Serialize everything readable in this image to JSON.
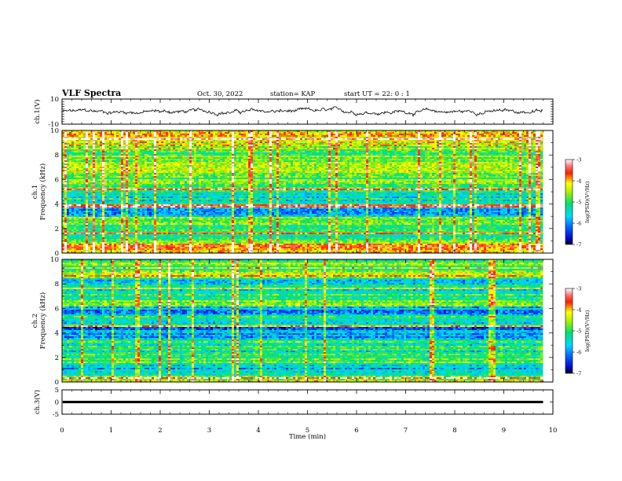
{
  "header": {
    "title": "VLF Spectra",
    "date": "Oct. 30, 2022",
    "station": "station= KAP",
    "start_time": "start  UT  =   22: 0  : 1"
  },
  "chart_data": [
    {
      "type": "line",
      "panel": "ch1-waveform",
      "ylabel": "ch.1(V)",
      "ylim": [
        -10,
        10
      ],
      "yticks": [
        "10",
        "-10"
      ],
      "xlim": [
        0,
        10
      ],
      "summary": "noisy waveform centred near 0 V, amplitude roughly ±2 V, ending at about 9.8 min"
    },
    {
      "type": "heatmap",
      "panel": "ch1-spectrogram",
      "ylabel": "Frequency (kHz)",
      "channel_label": "ch.1",
      "ylim": [
        0,
        10
      ],
      "yticks": [
        "0",
        "2",
        "4",
        "6",
        "8",
        "10"
      ],
      "xlim": [
        0,
        10
      ],
      "x_data_end": 9.8,
      "bands": [
        {
          "kHz": [
            0,
            0.8
          ],
          "level": -3.8
        },
        {
          "kHz": [
            0.8,
            2.0
          ],
          "level": -5.0
        },
        {
          "kHz": [
            2.0,
            3.0
          ],
          "level": -4.8
        },
        {
          "kHz": [
            3.0,
            3.7
          ],
          "level": -5.8
        },
        {
          "kHz": [
            3.7,
            4.0
          ],
          "level": -3.5
        },
        {
          "kHz": [
            4.0,
            5.0
          ],
          "level": -5.3
        },
        {
          "kHz": [
            5.0,
            6.2
          ],
          "level": -4.9
        },
        {
          "kHz": [
            6.2,
            7.0
          ],
          "level": -4.4
        },
        {
          "kHz": [
            7.0,
            8.4
          ],
          "level": -4.8
        },
        {
          "kHz": [
            8.4,
            10.0
          ],
          "level": -4.3
        }
      ],
      "colorbar": {
        "label": "log(PSD)(V²/Hz)",
        "range": [
          -7,
          -3
        ],
        "ticks": [
          "-3",
          "-4",
          "-5",
          "-6",
          "-7"
        ]
      }
    },
    {
      "type": "heatmap",
      "panel": "ch2-spectrogram",
      "ylabel": "Frequency (kHz)",
      "channel_label": "ch.2",
      "ylim": [
        0,
        10
      ],
      "yticks": [
        "0",
        "2",
        "4",
        "6",
        "8",
        "10"
      ],
      "xlim": [
        0,
        10
      ],
      "x_data_end": 9.8,
      "bands": [
        {
          "kHz": [
            0,
            0.5
          ],
          "level": -4.5
        },
        {
          "kHz": [
            0.5,
            1.5
          ],
          "level": -5.5
        },
        {
          "kHz": [
            1.5,
            2.5
          ],
          "level": -5.0
        },
        {
          "kHz": [
            2.5,
            3.4
          ],
          "level": -5.2
        },
        {
          "kHz": [
            3.4,
            4.5
          ],
          "level": -6.0
        },
        {
          "kHz": [
            4.5,
            5.5
          ],
          "level": -5.3
        },
        {
          "kHz": [
            5.5,
            6.2
          ],
          "level": -5.9
        },
        {
          "kHz": [
            6.2,
            7.5
          ],
          "level": -5.0
        },
        {
          "kHz": [
            7.5,
            8.5
          ],
          "level": -5.4
        },
        {
          "kHz": [
            8.5,
            10.0
          ],
          "level": -4.8
        }
      ],
      "colorbar": {
        "label": "log(PSD)(V²/Hz)",
        "range": [
          -7,
          -3
        ],
        "ticks": [
          "-3",
          "-4",
          "-5",
          "-6",
          "-7"
        ]
      }
    },
    {
      "type": "line",
      "panel": "ch3-waveform",
      "ylabel": "ch.3(V)",
      "ylim": [
        -5,
        5
      ],
      "yticks": [
        "5",
        "0",
        "-5"
      ],
      "xlim": [
        0,
        10
      ],
      "summary": "flat thick band near 0 V from 0 to about 9.8 min"
    }
  ],
  "x_axis": {
    "label": "Time  (min)",
    "ticks": [
      "0",
      "1",
      "2",
      "3",
      "4",
      "5",
      "6",
      "7",
      "8",
      "9",
      "10"
    ]
  }
}
